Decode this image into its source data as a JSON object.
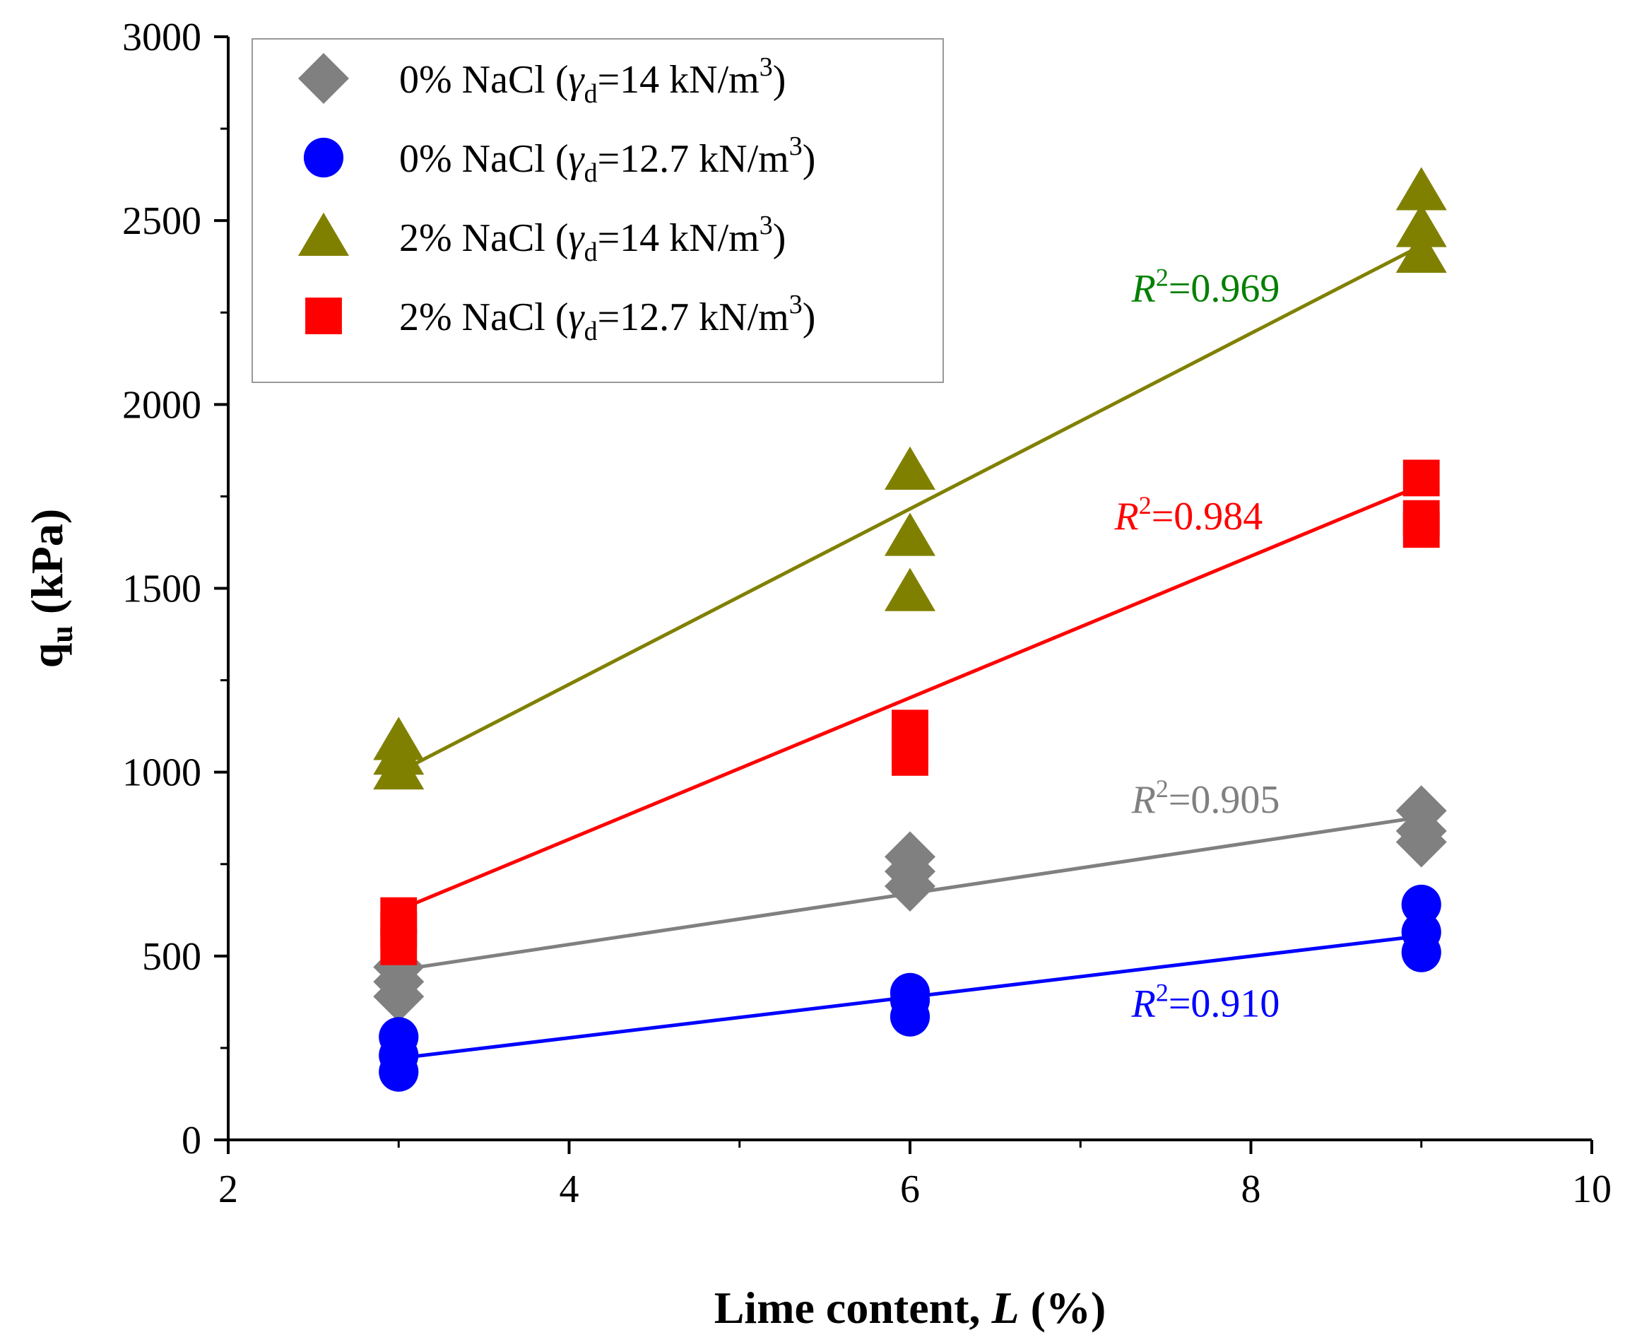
{
  "chart_data": {
    "type": "scatter",
    "title": "",
    "xlabel": {
      "main": "Lime content, ",
      "var": "L",
      "unit": " (%)"
    },
    "ylabel": {
      "main": "q",
      "sub": "u",
      "unit": " (kPa)"
    },
    "xlim": [
      2,
      10
    ],
    "ylim": [
      0,
      3000
    ],
    "x_ticks": [
      2,
      4,
      6,
      8,
      10
    ],
    "y_ticks": [
      0,
      500,
      1000,
      1500,
      2000,
      2500,
      3000
    ],
    "x_tick_labels": [
      "2",
      "4",
      "6",
      "8",
      "10"
    ],
    "y_tick_labels": [
      "0",
      "500",
      "1000",
      "1500",
      "2000",
      "2500",
      "3000"
    ],
    "legend_position": "top-left",
    "series": [
      {
        "name": "0% NaCl (γd=14 kN/m3)",
        "legend": {
          "pre": "0% NaCl (",
          "gamma": "γ",
          "gsub": "d",
          "mid": "=14 kN/m",
          "sup": "3",
          "post": ")"
        },
        "marker": "diamond",
        "color": "#808080",
        "points": [
          [
            3,
            470
          ],
          [
            3,
            430
          ],
          [
            3,
            390
          ],
          [
            6,
            770
          ],
          [
            6,
            730
          ],
          [
            6,
            690
          ],
          [
            9,
            895
          ],
          [
            9,
            840
          ],
          [
            9,
            810
          ]
        ],
        "fit": {
          "x": [
            3,
            9
          ],
          "y": [
            462,
            878
          ]
        },
        "r2": {
          "label": "R",
          "sup": "2",
          "value": "=0.905",
          "at": [
            7.3,
            890
          ]
        }
      },
      {
        "name": "0% NaCl (γd=12.7 kN/m3)",
        "legend": {
          "pre": "0% NaCl (",
          "gamma": "γ",
          "gsub": "d",
          "mid": "=12.7 kN/m",
          "sup": "3",
          "post": ")"
        },
        "marker": "circle",
        "color": "#0000ff",
        "points": [
          [
            3,
            280
          ],
          [
            3,
            230
          ],
          [
            3,
            185
          ],
          [
            6,
            400
          ],
          [
            6,
            380
          ],
          [
            6,
            335
          ],
          [
            9,
            640
          ],
          [
            9,
            565
          ],
          [
            9,
            510
          ]
        ],
        "fit": {
          "x": [
            3,
            9
          ],
          "y": [
            222,
            555
          ]
        },
        "r2": {
          "label": "R",
          "sup": "2",
          "value": "=0.910",
          "at": [
            7.3,
            335
          ]
        }
      },
      {
        "name": "2% NaCl (γd=14 kN/m3)",
        "legend": {
          "pre": "2% NaCl (",
          "gamma": "γ",
          "gsub": "d",
          "mid": "=14 kN/m",
          "sup": "3",
          "post": ")"
        },
        "marker": "triangle",
        "color": "#808000",
        "points": [
          [
            3,
            1085
          ],
          [
            3,
            1045
          ],
          [
            3,
            1005
          ],
          [
            6,
            1820
          ],
          [
            6,
            1640
          ],
          [
            6,
            1490
          ],
          [
            9,
            2580
          ],
          [
            9,
            2480
          ],
          [
            9,
            2410
          ]
        ],
        "fit": {
          "x": [
            3,
            9
          ],
          "y": [
            1000,
            2432
          ]
        },
        "r2": {
          "label": "R",
          "sup": "2",
          "value": "=0.969",
          "at": [
            7.3,
            2280
          ]
        },
        "r2_color": "#008000"
      },
      {
        "name": "2% NaCl (γd=12.7 kN/m3)",
        "legend": {
          "pre": "2% NaCl (",
          "gamma": "γ",
          "gsub": "d",
          "mid": "=12.7 kN/m",
          "sup": "3",
          "post": ")"
        },
        "marker": "square",
        "color": "#ff0000",
        "points": [
          [
            3,
            610
          ],
          [
            3,
            570
          ],
          [
            3,
            525
          ],
          [
            6,
            1120
          ],
          [
            6,
            1075
          ],
          [
            6,
            1040
          ],
          [
            9,
            1800
          ],
          [
            9,
            1690
          ],
          [
            9,
            1660
          ]
        ],
        "fit": {
          "x": [
            3,
            9
          ],
          "y": [
            625,
            1780
          ]
        },
        "r2": {
          "label": "R",
          "sup": "2",
          "value": "=0.984",
          "at": [
            7.2,
            1660
          ]
        }
      }
    ]
  }
}
